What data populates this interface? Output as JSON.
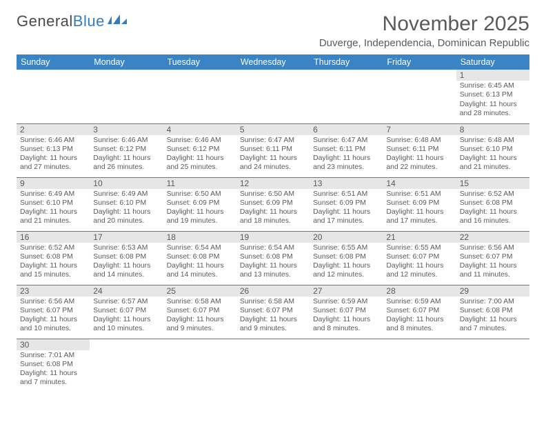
{
  "logo": {
    "textA": "General",
    "textB": "Blue"
  },
  "title": "November 2025",
  "subtitle": "Duverge, Independencia, Dominican Republic",
  "colors": {
    "headerBg": "#3a83c5",
    "headerText": "#ffffff",
    "dayBg": "#e6e6e6",
    "textGray": "#5a5a5a",
    "rowBorder": "#3a83c5",
    "logoBlue": "#2f7ec2"
  },
  "weekdays": [
    "Sunday",
    "Monday",
    "Tuesday",
    "Wednesday",
    "Thursday",
    "Friday",
    "Saturday"
  ],
  "weeks": [
    [
      null,
      null,
      null,
      null,
      null,
      null,
      {
        "n": "1",
        "sr": "6:45 AM",
        "ss": "6:13 PM",
        "dl": "11 hours and 28 minutes."
      }
    ],
    [
      {
        "n": "2",
        "sr": "6:46 AM",
        "ss": "6:13 PM",
        "dl": "11 hours and 27 minutes."
      },
      {
        "n": "3",
        "sr": "6:46 AM",
        "ss": "6:12 PM",
        "dl": "11 hours and 26 minutes."
      },
      {
        "n": "4",
        "sr": "6:46 AM",
        "ss": "6:12 PM",
        "dl": "11 hours and 25 minutes."
      },
      {
        "n": "5",
        "sr": "6:47 AM",
        "ss": "6:11 PM",
        "dl": "11 hours and 24 minutes."
      },
      {
        "n": "6",
        "sr": "6:47 AM",
        "ss": "6:11 PM",
        "dl": "11 hours and 23 minutes."
      },
      {
        "n": "7",
        "sr": "6:48 AM",
        "ss": "6:11 PM",
        "dl": "11 hours and 22 minutes."
      },
      {
        "n": "8",
        "sr": "6:48 AM",
        "ss": "6:10 PM",
        "dl": "11 hours and 21 minutes."
      }
    ],
    [
      {
        "n": "9",
        "sr": "6:49 AM",
        "ss": "6:10 PM",
        "dl": "11 hours and 21 minutes."
      },
      {
        "n": "10",
        "sr": "6:49 AM",
        "ss": "6:10 PM",
        "dl": "11 hours and 20 minutes."
      },
      {
        "n": "11",
        "sr": "6:50 AM",
        "ss": "6:09 PM",
        "dl": "11 hours and 19 minutes."
      },
      {
        "n": "12",
        "sr": "6:50 AM",
        "ss": "6:09 PM",
        "dl": "11 hours and 18 minutes."
      },
      {
        "n": "13",
        "sr": "6:51 AM",
        "ss": "6:09 PM",
        "dl": "11 hours and 17 minutes."
      },
      {
        "n": "14",
        "sr": "6:51 AM",
        "ss": "6:09 PM",
        "dl": "11 hours and 17 minutes."
      },
      {
        "n": "15",
        "sr": "6:52 AM",
        "ss": "6:08 PM",
        "dl": "11 hours and 16 minutes."
      }
    ],
    [
      {
        "n": "16",
        "sr": "6:52 AM",
        "ss": "6:08 PM",
        "dl": "11 hours and 15 minutes."
      },
      {
        "n": "17",
        "sr": "6:53 AM",
        "ss": "6:08 PM",
        "dl": "11 hours and 14 minutes."
      },
      {
        "n": "18",
        "sr": "6:54 AM",
        "ss": "6:08 PM",
        "dl": "11 hours and 14 minutes."
      },
      {
        "n": "19",
        "sr": "6:54 AM",
        "ss": "6:08 PM",
        "dl": "11 hours and 13 minutes."
      },
      {
        "n": "20",
        "sr": "6:55 AM",
        "ss": "6:08 PM",
        "dl": "11 hours and 12 minutes."
      },
      {
        "n": "21",
        "sr": "6:55 AM",
        "ss": "6:07 PM",
        "dl": "11 hours and 12 minutes."
      },
      {
        "n": "22",
        "sr": "6:56 AM",
        "ss": "6:07 PM",
        "dl": "11 hours and 11 minutes."
      }
    ],
    [
      {
        "n": "23",
        "sr": "6:56 AM",
        "ss": "6:07 PM",
        "dl": "11 hours and 10 minutes."
      },
      {
        "n": "24",
        "sr": "6:57 AM",
        "ss": "6:07 PM",
        "dl": "11 hours and 10 minutes."
      },
      {
        "n": "25",
        "sr": "6:58 AM",
        "ss": "6:07 PM",
        "dl": "11 hours and 9 minutes."
      },
      {
        "n": "26",
        "sr": "6:58 AM",
        "ss": "6:07 PM",
        "dl": "11 hours and 9 minutes."
      },
      {
        "n": "27",
        "sr": "6:59 AM",
        "ss": "6:07 PM",
        "dl": "11 hours and 8 minutes."
      },
      {
        "n": "28",
        "sr": "6:59 AM",
        "ss": "6:07 PM",
        "dl": "11 hours and 8 minutes."
      },
      {
        "n": "29",
        "sr": "7:00 AM",
        "ss": "6:08 PM",
        "dl": "11 hours and 7 minutes."
      }
    ],
    [
      {
        "n": "30",
        "sr": "7:01 AM",
        "ss": "6:08 PM",
        "dl": "11 hours and 7 minutes."
      },
      null,
      null,
      null,
      null,
      null,
      null
    ]
  ],
  "labels": {
    "sunrise": "Sunrise: ",
    "sunset": "Sunset: ",
    "daylight": "Daylight: "
  }
}
